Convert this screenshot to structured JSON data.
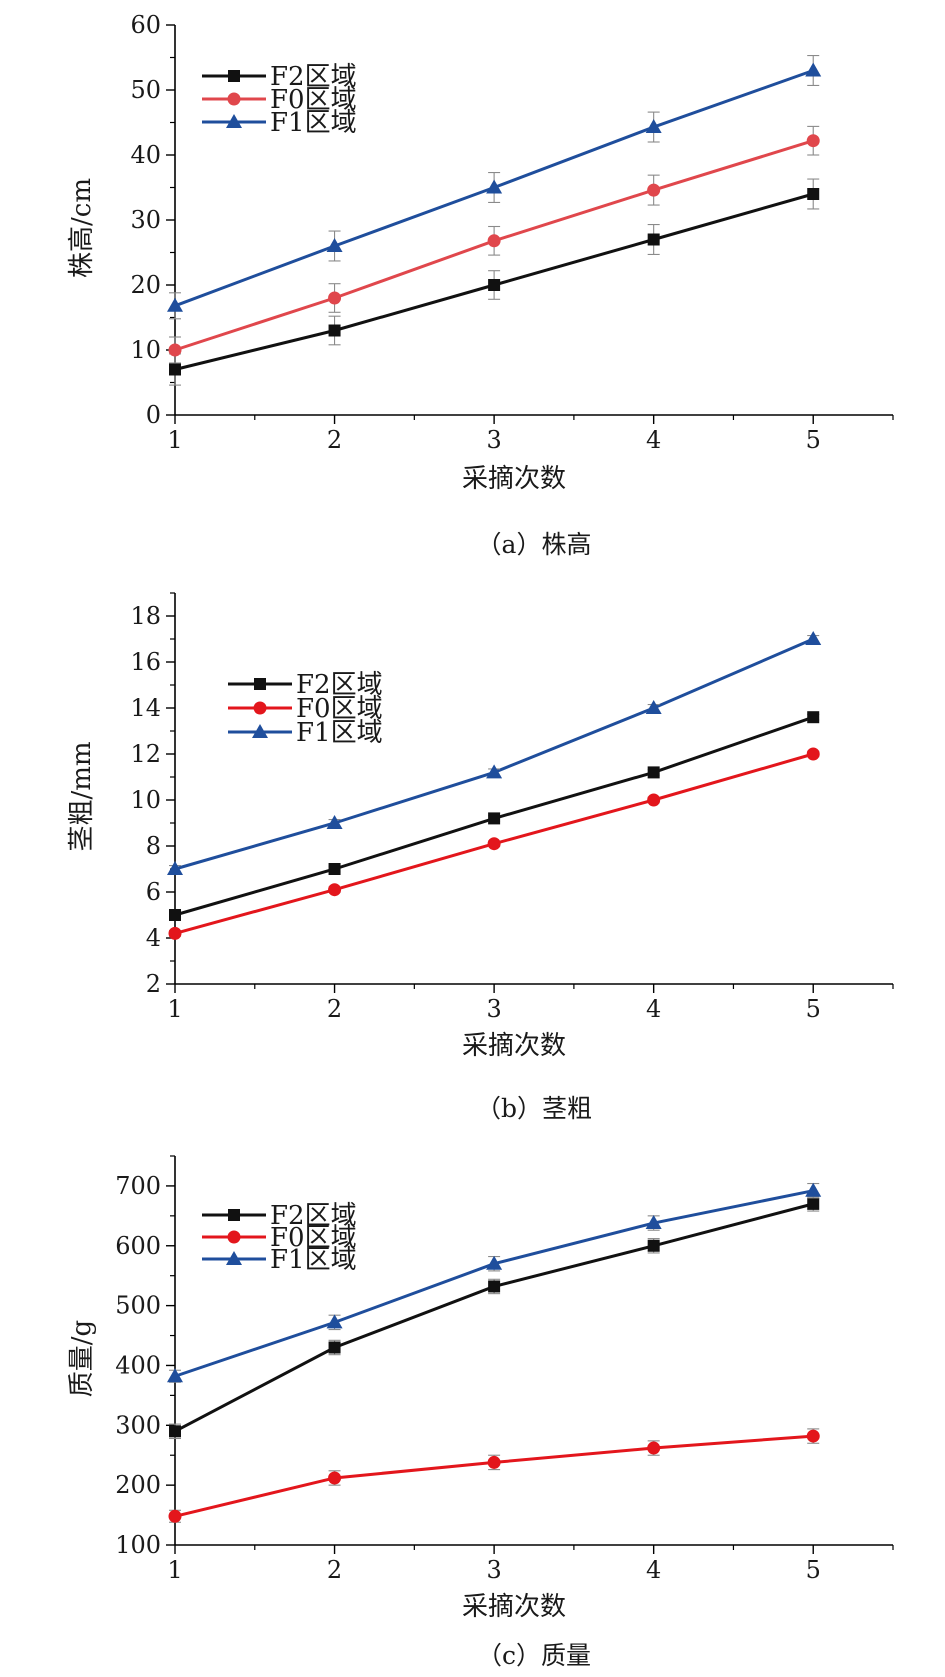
{
  "chart_data": [
    {
      "type": "line",
      "caption": "（a）株高",
      "xlabel": "采摘次数",
      "ylabel": "株高/cm",
      "x": [
        1,
        2,
        3,
        4,
        5
      ],
      "xlim": [
        1,
        5.5
      ],
      "ylim": [
        0,
        60
      ],
      "yticks": [
        0,
        10,
        20,
        30,
        40,
        50,
        60
      ],
      "error_bars": true,
      "legend_position": "top-left",
      "series": [
        {
          "name": "F2区域",
          "marker": "square",
          "color": "#111111",
          "values": [
            7,
            13,
            20,
            27,
            34
          ],
          "errors": [
            2.4,
            2.2,
            2.2,
            2.3,
            2.3
          ]
        },
        {
          "name": "F0区域",
          "marker": "circle",
          "color": "#e0474c",
          "values": [
            10,
            18,
            26.8,
            34.6,
            42.2
          ],
          "errors": [
            2.0,
            2.2,
            2.2,
            2.3,
            2.2
          ]
        },
        {
          "name": "F1区域",
          "marker": "triangle",
          "color": "#1f4e9c",
          "values": [
            16.8,
            26,
            35,
            44.3,
            53
          ],
          "errors": [
            2.0,
            2.3,
            2.3,
            2.3,
            2.3
          ]
        }
      ]
    },
    {
      "type": "line",
      "caption": "（b）茎粗",
      "xlabel": "采摘次数",
      "ylabel": "茎粗/mm",
      "x": [
        1,
        2,
        3,
        4,
        5
      ],
      "xlim": [
        1,
        5.5
      ],
      "ylim": [
        2,
        19
      ],
      "yticks": [
        2,
        4,
        6,
        8,
        10,
        12,
        14,
        16,
        18
      ],
      "error_bars": true,
      "legend_position": "top-left",
      "series": [
        {
          "name": "F2区域",
          "marker": "square",
          "color": "#111111",
          "values": [
            5,
            7,
            9.2,
            11.2,
            13.6
          ],
          "errors": [
            0.12,
            0.12,
            0.12,
            0.12,
            0.12
          ]
        },
        {
          "name": "F0区域",
          "marker": "circle",
          "color": "#e3161c",
          "values": [
            4.2,
            6.1,
            8.1,
            10,
            12
          ],
          "errors": [
            0.12,
            0.12,
            0.12,
            0.12,
            0.12
          ]
        },
        {
          "name": "F1区域",
          "marker": "triangle",
          "color": "#1f4e9c",
          "values": [
            7,
            9,
            11.2,
            14,
            17
          ],
          "errors": [
            0.15,
            0.15,
            0.15,
            0.15,
            0.15
          ]
        }
      ]
    },
    {
      "type": "line",
      "caption": "（c）质量",
      "xlabel": "采摘次数",
      "ylabel": "质量/g",
      "x": [
        1,
        2,
        3,
        4,
        5
      ],
      "xlim": [
        1,
        5.5
      ],
      "ylim": [
        100,
        750
      ],
      "yticks": [
        100,
        200,
        300,
        400,
        500,
        600,
        700
      ],
      "error_bars": true,
      "legend_position": "top-left",
      "series": [
        {
          "name": "F2区域",
          "marker": "square",
          "color": "#111111",
          "values": [
            290,
            430,
            532,
            600,
            670
          ],
          "errors": [
            12,
            12,
            12,
            12,
            12
          ]
        },
        {
          "name": "F0区域",
          "marker": "circle",
          "color": "#e3161c",
          "values": [
            148,
            212,
            238,
            262,
            282
          ],
          "errors": [
            10,
            12,
            12,
            12,
            12
          ]
        },
        {
          "name": "F1区域",
          "marker": "triangle",
          "color": "#1f4e9c",
          "values": [
            382,
            472,
            570,
            638,
            692
          ],
          "errors": [
            10,
            12,
            12,
            12,
            12
          ]
        }
      ]
    }
  ]
}
